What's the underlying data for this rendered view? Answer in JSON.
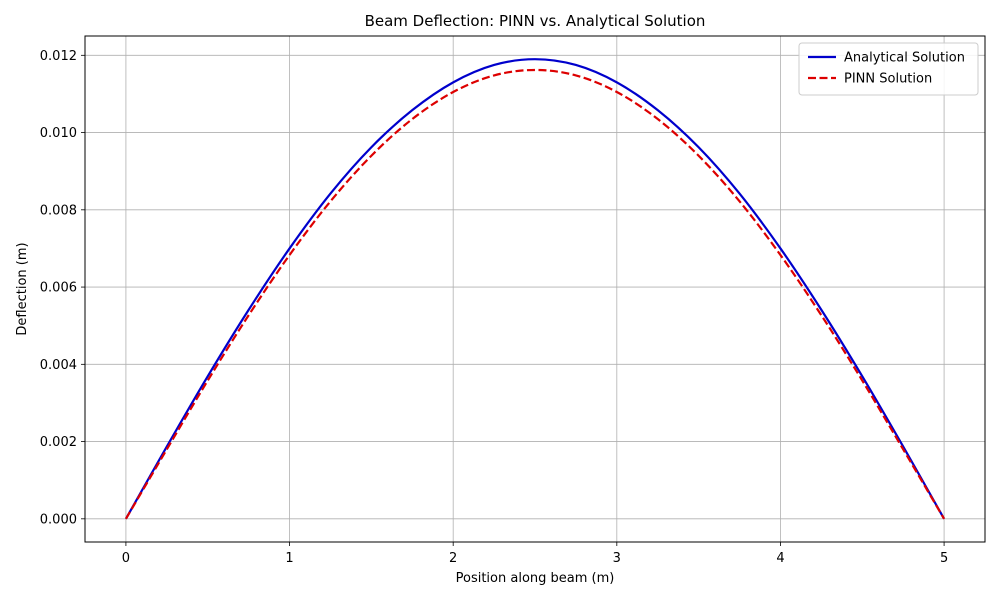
{
  "chart_data": {
    "type": "line",
    "title": "Beam Deflection: PINN vs. Analytical Solution",
    "xlabel": "Position along beam (m)",
    "ylabel": "Deflection (m)",
    "xlim": [
      -0.25,
      5.25
    ],
    "ylim": [
      -0.0006,
      0.0125
    ],
    "x_ticks": [
      0,
      1,
      2,
      3,
      4,
      5
    ],
    "x_tick_labels": [
      "0",
      "1",
      "2",
      "3",
      "4",
      "5"
    ],
    "y_ticks": [
      0,
      0.002,
      0.004,
      0.006,
      0.008,
      0.01,
      0.012
    ],
    "y_tick_labels": [
      "0.000",
      "0.002",
      "0.004",
      "0.006",
      "0.008",
      "0.010",
      "0.012"
    ],
    "grid": true,
    "legend_position": "top-right",
    "x": [
      0,
      0.25,
      0.5,
      0.75,
      1.0,
      1.25,
      1.5,
      1.75,
      2.0,
      2.25,
      2.5,
      2.75,
      3.0,
      3.25,
      3.5,
      3.75,
      4.0,
      4.25,
      4.5,
      4.75,
      5.0
    ],
    "series": [
      {
        "name": "Analytical Solution",
        "color": "#0000cc",
        "style": "solid",
        "values": [
          0.0,
          0.00187,
          0.00369,
          0.00541,
          0.007,
          0.00842,
          0.00962,
          0.01058,
          0.0113,
          0.01175,
          0.0119,
          0.01175,
          0.0113,
          0.01058,
          0.00962,
          0.00842,
          0.007,
          0.00541,
          0.00369,
          0.00187,
          0.0
        ]
      },
      {
        "name": "PINN Solution",
        "color": "#dd0000",
        "style": "dashed",
        "values": [
          0.0,
          0.0018,
          0.00358,
          0.00527,
          0.00683,
          0.00822,
          0.0094,
          0.01035,
          0.01105,
          0.01148,
          0.01162,
          0.01148,
          0.01105,
          0.01035,
          0.0094,
          0.00822,
          0.00683,
          0.00527,
          0.00358,
          0.0018,
          0.0
        ]
      }
    ]
  }
}
